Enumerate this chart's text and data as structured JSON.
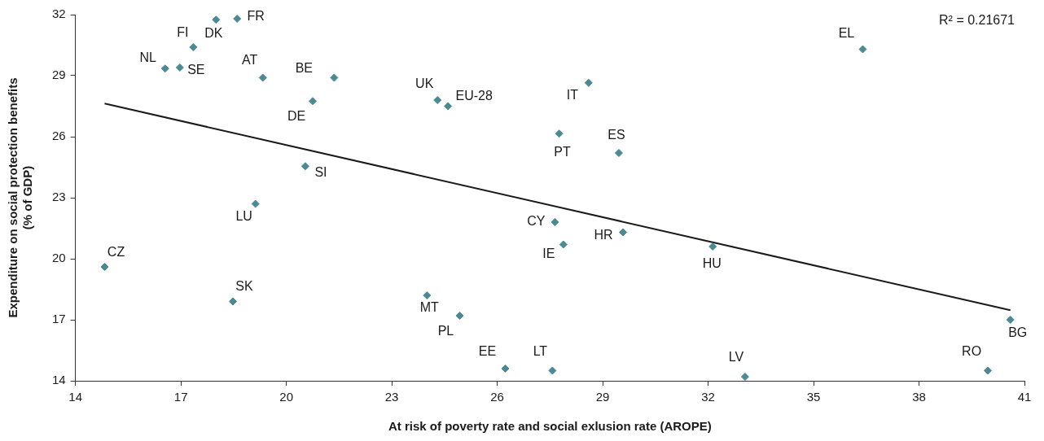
{
  "chart_data": {
    "type": "scatter",
    "xlabel": "At risk of poverty rate and social exlusion rate (AROPE)",
    "ylabel": "Expenditure on social protection benefits\n(% of GDP)",
    "xlim": [
      14,
      41
    ],
    "xticks": [
      14,
      17,
      20,
      23,
      26,
      29,
      32,
      35,
      38,
      41
    ],
    "ylim": [
      14,
      32
    ],
    "yticks": [
      14,
      17,
      20,
      23,
      26,
      29,
      32
    ],
    "grid": false,
    "legend": false,
    "series": [
      {
        "marker": "diamond",
        "color": "#4a8a95",
        "x": [
          18.6,
          18.0,
          17.35,
          16.55,
          16.97,
          19.33,
          21.36,
          20.75,
          24.3,
          24.6,
          28.6,
          36.4,
          27.76,
          29.46,
          20.54,
          19.12,
          14.83,
          27.64,
          29.58,
          27.88,
          32.13,
          18.48,
          24.0,
          24.93,
          26.23,
          27.57,
          33.05,
          39.96,
          40.6
        ],
        "values": [
          31.8,
          31.75,
          30.4,
          29.35,
          29.4,
          28.9,
          28.9,
          27.75,
          27.8,
          27.5,
          28.65,
          30.3,
          26.15,
          25.2,
          24.55,
          22.7,
          19.6,
          21.8,
          21.3,
          20.7,
          20.6,
          17.9,
          18.2,
          17.2,
          14.6,
          14.5,
          14.2,
          14.5,
          17.0
        ]
      },
      {
        "type": "line",
        "marker": "none",
        "color": "#1a1a1a",
        "x": [
          14.83,
          40.6
        ],
        "values": [
          27.63,
          17.47
        ]
      }
    ],
    "annotations": [
      {
        "text": "FR",
        "x": 18.6,
        "y": 31.8
      },
      {
        "text": "DK",
        "x": 18.0,
        "y": 31.75
      },
      {
        "text": "FI",
        "x": 17.35,
        "y": 30.4
      },
      {
        "text": "NL",
        "x": 16.55,
        "y": 29.35
      },
      {
        "text": "SE",
        "x": 16.97,
        "y": 29.4
      },
      {
        "text": "AT",
        "x": 19.33,
        "y": 28.9
      },
      {
        "text": "BE",
        "x": 21.36,
        "y": 28.9
      },
      {
        "text": "DE",
        "x": 20.75,
        "y": 27.75
      },
      {
        "text": "UK",
        "x": 24.3,
        "y": 27.8
      },
      {
        "text": "EU-28",
        "x": 24.6,
        "y": 27.5
      },
      {
        "text": "IT",
        "x": 28.6,
        "y": 28.65
      },
      {
        "text": "EL",
        "x": 36.4,
        "y": 30.3
      },
      {
        "text": "PT",
        "x": 27.76,
        "y": 26.15
      },
      {
        "text": "ES",
        "x": 29.46,
        "y": 25.2
      },
      {
        "text": "SI",
        "x": 20.54,
        "y": 24.55
      },
      {
        "text": "LU",
        "x": 19.12,
        "y": 22.7
      },
      {
        "text": "CZ",
        "x": 14.83,
        "y": 19.6
      },
      {
        "text": "CY",
        "x": 27.64,
        "y": 21.8
      },
      {
        "text": "HR",
        "x": 29.58,
        "y": 21.3
      },
      {
        "text": "IE",
        "x": 27.88,
        "y": 20.7
      },
      {
        "text": "HU",
        "x": 32.13,
        "y": 20.6
      },
      {
        "text": "SK",
        "x": 18.48,
        "y": 17.9
      },
      {
        "text": "MT",
        "x": 24.0,
        "y": 18.2
      },
      {
        "text": "PL",
        "x": 24.93,
        "y": 17.2
      },
      {
        "text": "EE",
        "x": 26.23,
        "y": 14.6
      },
      {
        "text": "LT",
        "x": 27.57,
        "y": 14.5
      },
      {
        "text": "LV",
        "x": 33.05,
        "y": 14.2
      },
      {
        "text": "RO",
        "x": 39.96,
        "y": 14.5
      },
      {
        "text": "BG",
        "x": 40.6,
        "y": 17.0
      },
      "R² = 0.21671"
    ]
  }
}
